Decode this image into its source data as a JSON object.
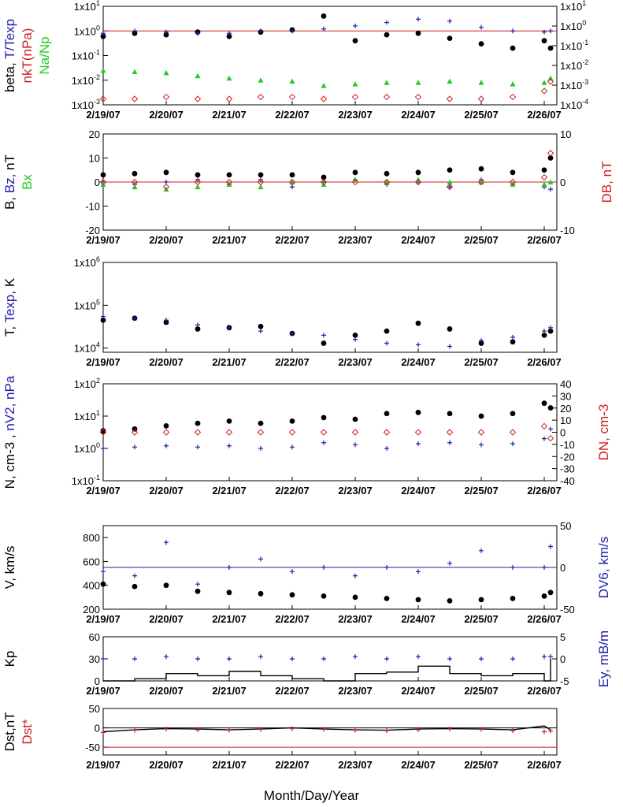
{
  "colors": {
    "black": "#000000",
    "blue": "#1f1fa8",
    "red": "#cc1f1f",
    "green": "#22cc22"
  },
  "chart_data": [
    {
      "type": "scatter",
      "ylabel_parts": [
        {
          "text": "beta, ",
          "color": "#000000"
        },
        {
          "text": "T/Texp",
          "color": "#1f1fa8"
        }
      ],
      "ylabel2_parts": [
        {
          "text": "nkT(nPa)",
          "color": "#cc1f1f"
        }
      ],
      "ylabel3_parts": [
        {
          "text": "Na/Np",
          "color": "#22cc22"
        }
      ],
      "yscale": "log",
      "ylim": [
        0.001,
        10
      ],
      "ytick_values": [
        0.001,
        0.01,
        0.1,
        1,
        10
      ],
      "ytick_labels": [
        "1x10-3",
        "1x10-2",
        "1x10-1",
        "1x100",
        "1x101"
      ],
      "y2scale": "log",
      "y2lim": [
        0.0001,
        10
      ],
      "y2tick_values": [
        0.0001,
        0.001,
        0.01,
        0.1,
        1,
        10
      ],
      "y2tick_labels": [
        "1x10-4",
        "1x10-3",
        "1x10-2",
        "1x10-1",
        "1x100",
        "1x101"
      ],
      "refline": {
        "y": 1,
        "color": "#cc1f1f"
      },
      "series": [
        {
          "marker": "dot",
          "color": "#000000",
          "axis": "left",
          "x": [
            0,
            0.5,
            1,
            1.5,
            2,
            2.5,
            3,
            3.5,
            4,
            4.5,
            5,
            5.5,
            6,
            6.5,
            7,
            7.1
          ],
          "values": [
            0.6,
            0.8,
            0.7,
            0.9,
            0.6,
            0.9,
            1.1,
            4,
            0.4,
            0.7,
            0.8,
            0.5,
            0.3,
            0.2,
            0.4,
            0.2
          ]
        },
        {
          "marker": "plus",
          "color": "#1f1fa8",
          "axis": "left",
          "x": [
            0,
            0.5,
            1,
            1.5,
            2,
            2.5,
            3,
            3.5,
            4,
            4.5,
            5,
            5.5,
            6,
            6.5,
            7,
            7.1
          ],
          "values": [
            0.8,
            1,
            0.9,
            0.8,
            0.8,
            1,
            1,
            1.2,
            1.6,
            2.2,
            3,
            2.5,
            1.4,
            1,
            0.9,
            1
          ]
        },
        {
          "marker": "tri",
          "color": "#22cc22",
          "axis": "left",
          "x": [
            0,
            0.5,
            1,
            1.5,
            2,
            2.5,
            3,
            3.5,
            4,
            4.5,
            5,
            5.5,
            6,
            6.5,
            7,
            7.1
          ],
          "values": [
            0.025,
            0.022,
            0.02,
            0.015,
            0.012,
            0.01,
            0.009,
            0.006,
            0.007,
            0.008,
            0.008,
            0.009,
            0.008,
            0.007,
            0.008,
            0.012
          ]
        },
        {
          "marker": "diamond",
          "color": "#cc1f1f",
          "axis": "right",
          "x": [
            0,
            0.5,
            1,
            1.5,
            2,
            2.5,
            3,
            3.5,
            4,
            4.5,
            5,
            5.5,
            6,
            6.5,
            7,
            7.1
          ],
          "values": [
            0.0002,
            0.0002,
            0.00025,
            0.0002,
            0.0002,
            0.00025,
            0.00025,
            0.0002,
            0.00025,
            0.00025,
            0.00025,
            0.0002,
            0.0002,
            0.00025,
            0.0005,
            0.0015
          ]
        }
      ]
    },
    {
      "type": "scatter",
      "ylabel_parts": [
        {
          "text": "B, ",
          "color": "#000000"
        },
        {
          "text": "Bz, ",
          "color": "#1f1fa8"
        },
        {
          "text": "nT",
          "color": "#000000"
        }
      ],
      "ylabel3_parts": [
        {
          "text": "Bx",
          "color": "#22cc22"
        }
      ],
      "ylabel2_parts": [
        {
          "text": "DB, nT",
          "color": "#cc1f1f"
        }
      ],
      "yscale": "linear",
      "ylim": [
        -20,
        20
      ],
      "ytick_values": [
        -20,
        -10,
        0,
        10,
        20
      ],
      "ytick_labels": [
        "-20",
        "-10",
        "0",
        "10",
        "20"
      ],
      "y2scale": "linear",
      "y2lim": [
        -10,
        10
      ],
      "y2tick_values": [
        -10,
        0,
        10
      ],
      "y2tick_labels": [
        "-10",
        "0",
        "10"
      ],
      "refline": {
        "y": 0,
        "color": "#cc1f1f"
      },
      "series": [
        {
          "marker": "dot",
          "color": "#000000",
          "axis": "left",
          "x": [
            0,
            0.5,
            1,
            1.5,
            2,
            2.5,
            3,
            3.5,
            4,
            4.5,
            5,
            5.5,
            6,
            6.5,
            7,
            7.1
          ],
          "values": [
            3,
            3.5,
            4,
            3,
            3,
            3,
            3,
            2,
            4,
            3.5,
            4,
            5,
            5.5,
            4,
            5,
            10
          ]
        },
        {
          "marker": "plus",
          "color": "#1f1fa8",
          "axis": "left",
          "x": [
            0,
            0.5,
            1,
            1.5,
            2,
            2.5,
            3,
            3.5,
            4,
            4.5,
            5,
            5.5,
            6,
            6.5,
            7,
            7.1
          ],
          "values": [
            0,
            -1,
            0,
            1,
            -1,
            1,
            -2,
            0,
            1,
            -1,
            0,
            -2,
            1,
            -1,
            -2,
            -3
          ]
        },
        {
          "marker": "tri",
          "color": "#22cc22",
          "axis": "left",
          "x": [
            0,
            0.5,
            1,
            1.5,
            2,
            2.5,
            3,
            3.5,
            4,
            4.5,
            5,
            5.5,
            6,
            6.5,
            7,
            7.1
          ],
          "values": [
            -1,
            -2,
            -3,
            -2,
            -1,
            -2,
            0,
            -1,
            1,
            0,
            1,
            0,
            0,
            -1,
            -1,
            0
          ]
        },
        {
          "marker": "diamond",
          "color": "#cc1f1f",
          "axis": "right",
          "x": [
            0,
            0.5,
            1,
            1.5,
            2,
            2.5,
            3,
            3.5,
            4,
            4.5,
            5,
            5.5,
            6,
            6.5,
            7,
            7.1
          ],
          "values": [
            0,
            0,
            -1,
            0,
            0,
            0,
            0,
            0,
            0,
            0,
            0,
            -1,
            0,
            0,
            1,
            6
          ]
        }
      ]
    },
    {
      "type": "scatter",
      "ylabel_parts": [
        {
          "text": "T, ",
          "color": "#000000"
        },
        {
          "text": "Texp",
          "color": "#1f1fa8"
        },
        {
          "text": ", K",
          "color": "#000000"
        }
      ],
      "yscale": "log",
      "ylim": [
        8000,
        1000000
      ],
      "ytick_values": [
        10000,
        100000,
        1000000
      ],
      "ytick_labels": [
        "1x104",
        "1x105",
        "1x106"
      ],
      "series": [
        {
          "marker": "dot",
          "color": "#000000",
          "axis": "left",
          "x": [
            0,
            0.5,
            1,
            1.5,
            2,
            2.5,
            3,
            3.5,
            4,
            4.5,
            5,
            5.5,
            6,
            6.5,
            7,
            7.1
          ],
          "values": [
            45000,
            50000,
            40000,
            28000,
            30000,
            32000,
            22000,
            13000,
            20000,
            25000,
            38000,
            28000,
            13000,
            14000,
            20000,
            25000
          ]
        },
        {
          "marker": "plus",
          "color": "#1f1fa8",
          "axis": "left",
          "x": [
            0,
            0.5,
            1,
            1.5,
            2,
            2.5,
            3,
            3.5,
            4,
            4.5,
            5,
            5.5,
            6,
            6.5,
            7,
            7.1
          ],
          "values": [
            55000,
            50000,
            45000,
            35000,
            30000,
            25000,
            22000,
            20000,
            16000,
            13000,
            12000,
            11000,
            15000,
            18000,
            25000,
            30000
          ]
        }
      ]
    },
    {
      "type": "scatter",
      "ylabel_parts": [
        {
          "text": "N, cm-3 , ",
          "color": "#000000"
        },
        {
          "text": "nV2, nPa",
          "color": "#1f1fa8"
        }
      ],
      "ylabel2_parts": [
        {
          "text": "DN, cm-3",
          "color": "#cc1f1f"
        }
      ],
      "yscale": "log",
      "ylim": [
        0.1,
        100
      ],
      "ytick_values": [
        0.1,
        1,
        10,
        100
      ],
      "ytick_labels": [
        "1x10-1",
        "1x100",
        "1x101",
        "1x102"
      ],
      "y2scale": "linear",
      "y2lim": [
        -40,
        40
      ],
      "y2tick_values": [
        -40,
        -30,
        -20,
        -10,
        0,
        10,
        20,
        30,
        40
      ],
      "y2tick_labels": [
        "-40",
        "-30",
        "-20",
        "-10",
        "0",
        "10",
        "20",
        "30",
        "40"
      ],
      "series": [
        {
          "marker": "dot",
          "color": "#000000",
          "axis": "left",
          "x": [
            0,
            0.5,
            1,
            1.5,
            2,
            2.5,
            3,
            3.5,
            4,
            4.5,
            5,
            5.5,
            6,
            6.5,
            7,
            7.1
          ],
          "values": [
            3.5,
            4,
            5,
            6,
            7,
            6,
            7,
            9,
            8,
            12,
            13,
            12,
            10,
            12,
            25,
            18
          ]
        },
        {
          "marker": "diamond",
          "color": "#cc1f1f",
          "axis": "right",
          "x": [
            0,
            0.5,
            1,
            1.5,
            2,
            2.5,
            3,
            3.5,
            4,
            4.5,
            5,
            5.5,
            6,
            6.5,
            7,
            7.1
          ],
          "values": [
            0,
            0,
            0,
            0,
            0,
            0,
            0,
            0,
            0,
            0,
            0,
            0,
            0,
            0,
            5,
            -5
          ]
        },
        {
          "marker": "plus",
          "color": "#1f1fa8",
          "axis": "left",
          "x": [
            0,
            0.5,
            1,
            1.5,
            2,
            2.5,
            3,
            3.5,
            4,
            4.5,
            5,
            5.5,
            6,
            6.5,
            7,
            7.1
          ],
          "values": [
            1,
            1.1,
            1.2,
            1.1,
            1.2,
            1,
            1.1,
            1.5,
            1.3,
            1,
            1.4,
            1.5,
            1.3,
            1.4,
            2,
            4
          ]
        }
      ]
    },
    {
      "type": "scatter",
      "ylabel_parts": [
        {
          "text": "V, km/s",
          "color": "#000000"
        }
      ],
      "ylabel2_parts": [
        {
          "text": "DV6, km/s",
          "color": "#1f1fa8"
        }
      ],
      "yscale": "linear",
      "ylim": [
        200,
        900
      ],
      "ytick_values": [
        200,
        400,
        600,
        800
      ],
      "ytick_labels": [
        "200",
        "400",
        "600",
        "800"
      ],
      "y2scale": "linear",
      "y2lim": [
        -50,
        50
      ],
      "y2tick_values": [
        -50,
        0,
        50
      ],
      "y2tick_labels": [
        "-50",
        "0",
        "50"
      ],
      "refline": {
        "y2": 0,
        "color": "#1f1fa8"
      },
      "series": [
        {
          "marker": "dot",
          "color": "#000000",
          "axis": "left",
          "x": [
            0,
            0.5,
            1,
            1.5,
            2,
            2.5,
            3,
            3.5,
            4,
            4.5,
            5,
            5.5,
            6,
            6.5,
            7,
            7.1
          ],
          "values": [
            410,
            390,
            400,
            350,
            340,
            330,
            320,
            310,
            300,
            290,
            280,
            270,
            280,
            290,
            310,
            340
          ]
        },
        {
          "marker": "plus",
          "color": "#1f1fa8",
          "axis": "right",
          "x": [
            0,
            0.5,
            1,
            1.5,
            2,
            2.5,
            3,
            3.5,
            4,
            4.5,
            5,
            5.5,
            6,
            6.5,
            7,
            7.1
          ],
          "values": [
            -5,
            -10,
            30,
            -20,
            0,
            10,
            -5,
            0,
            -10,
            0,
            -5,
            5,
            20,
            0,
            0,
            25
          ]
        }
      ]
    },
    {
      "type": "scatter",
      "ylabel_parts": [
        {
          "text": "Kp",
          "color": "#000000"
        }
      ],
      "ylabel2_parts": [
        {
          "text": "Ey, mB/m",
          "color": "#1f1fa8"
        }
      ],
      "yscale": "linear",
      "ylim": [
        0,
        60
      ],
      "ytick_values": [
        0,
        30,
        60
      ],
      "ytick_labels": [
        "0",
        "30",
        "60"
      ],
      "y2scale": "linear",
      "y2lim": [
        -5,
        5
      ],
      "y2tick_values": [
        -5,
        0,
        5
      ],
      "y2tick_labels": [
        "-5",
        "0",
        "5"
      ],
      "series": [
        {
          "marker": "step",
          "color": "#000000",
          "axis": "left",
          "x": [
            0,
            0.5,
            1,
            1.5,
            2,
            2.5,
            3,
            3.5,
            4,
            4.5,
            5,
            5.5,
            6,
            6.5,
            7,
            7.1
          ],
          "values": [
            0,
            3,
            10,
            7,
            13,
            7,
            3,
            0,
            10,
            12,
            20,
            10,
            7,
            10,
            0,
            30
          ]
        },
        {
          "marker": "plus",
          "color": "#1f1fa8",
          "axis": "right",
          "x": [
            0,
            0.5,
            1,
            1.5,
            2,
            2.5,
            3,
            3.5,
            4,
            4.5,
            5,
            5.5,
            6,
            6.5,
            7,
            7.1
          ],
          "values": [
            0,
            0,
            0.5,
            0,
            0,
            0.5,
            0,
            0,
            0.5,
            0,
            0.5,
            0,
            0,
            0,
            0.5,
            0.5
          ]
        }
      ]
    },
    {
      "type": "line",
      "ylabel_parts": [
        {
          "text": "Dst,nT",
          "color": "#000000"
        }
      ],
      "ylabel3_parts": [
        {
          "text": "Dst*",
          "color": "#cc1f1f"
        }
      ],
      "yscale": "linear",
      "ylim": [
        -70,
        50
      ],
      "ytick_values": [
        -50,
        0,
        50
      ],
      "ytick_labels": [
        "-50",
        "0",
        "50"
      ],
      "refline": {
        "y": -50,
        "color": "#cc1f1f"
      },
      "refline2": {
        "y": 0,
        "color": "#000000"
      },
      "series": [
        {
          "marker": "line",
          "color": "#000000",
          "axis": "left",
          "x": [
            0,
            0.5,
            1,
            1.5,
            2,
            2.5,
            3,
            3.5,
            4,
            4.5,
            5,
            5.5,
            6,
            6.5,
            7,
            7.1
          ],
          "values": [
            -10,
            -5,
            -2,
            -3,
            -5,
            -3,
            0,
            -3,
            -5,
            -6,
            -3,
            -2,
            -3,
            -5,
            5,
            -5
          ]
        },
        {
          "marker": "plus",
          "color": "#cc1f1f",
          "axis": "left",
          "x": [
            0,
            0.5,
            1,
            1.5,
            2,
            2.5,
            3,
            3.5,
            4,
            4.5,
            5,
            5.5,
            6,
            6.5,
            7,
            7.1
          ],
          "values": [
            -12,
            -6,
            -3,
            -5,
            -6,
            -4,
            -2,
            -4,
            -6,
            -7,
            -5,
            -3,
            -4,
            -7,
            -10,
            -8
          ]
        }
      ]
    }
  ],
  "x_ticks": [
    "2/19/07",
    "2/20/07",
    "2/21/07",
    "2/22/07",
    "2/23/07",
    "2/24/07",
    "2/25/07",
    "2/26/07"
  ],
  "xlabel": "Month/Day/Year"
}
